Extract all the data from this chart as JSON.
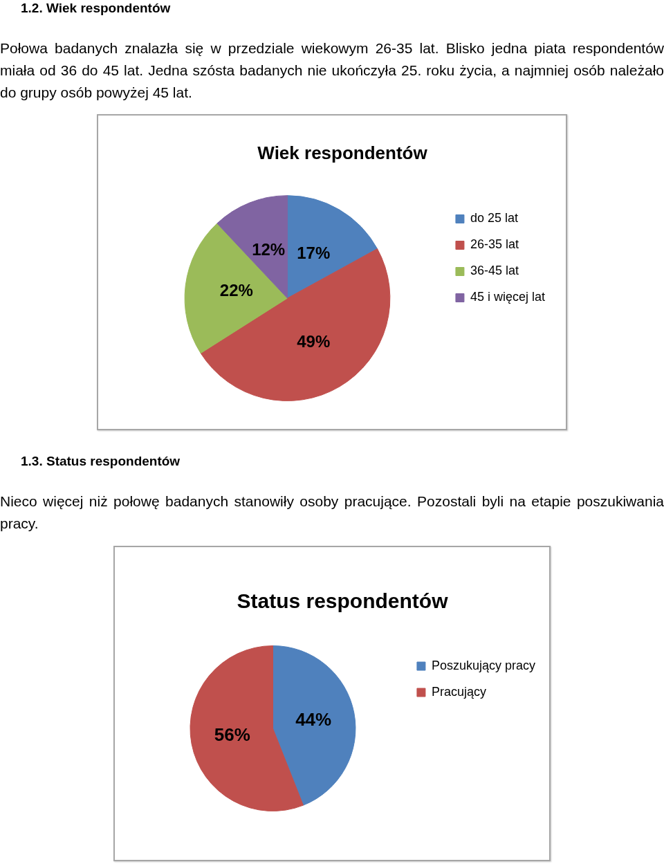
{
  "chart_data": [
    {
      "type": "pie",
      "title": "Wiek respondentów",
      "categories": [
        "do 25 lat",
        "26-35 lat",
        "36-45 lat",
        "45 i więcej lat"
      ],
      "values": [
        17,
        49,
        22,
        12
      ],
      "colors": [
        "#4f81bd",
        "#c0504d",
        "#9bbb59",
        "#8064a2"
      ],
      "value_labels": [
        "17%",
        "49%",
        "22%",
        "12%"
      ],
      "legend": "right",
      "annotations": [
        "1.2. Wiek respondentów",
        "Połowa badanych znalazła się w przedziale wiekowym 26-35 lat. Blisko jedna piata respondentów miała od 36 do 45 lat. Jedna szósta badanych nie ukończyła 25. roku życia, a najmniej osób należało do grupy osób powyżej 45 lat."
      ]
    },
    {
      "type": "pie",
      "title": "Status respondentów",
      "categories": [
        "Poszukujący pracy",
        "Pracujący"
      ],
      "values": [
        44,
        56
      ],
      "colors": [
        "#4f81bd",
        "#c0504d"
      ],
      "value_labels": [
        "44%",
        "56%"
      ],
      "legend": "right",
      "annotations": [
        "1.3. Status respondentów",
        "Nieco więcej niż połowę badanych stanowiły osoby pracujące. Pozostali byli na etapie poszukiwania pracy."
      ]
    }
  ]
}
